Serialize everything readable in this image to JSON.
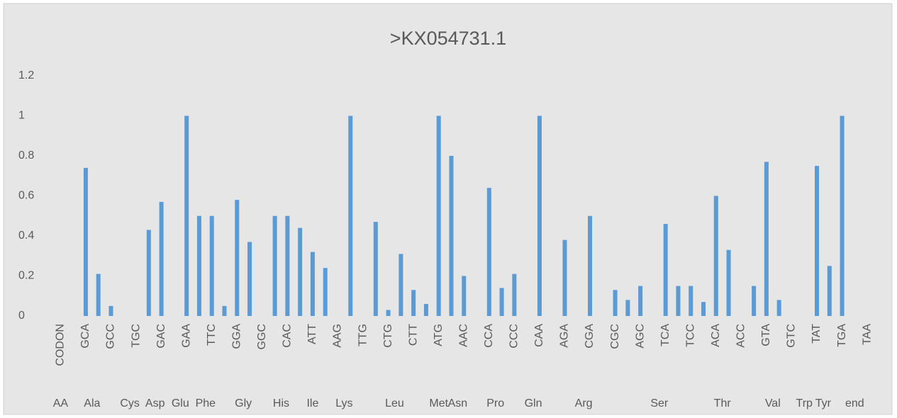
{
  "chart_data": {
    "type": "bar",
    "title": ">KX054731.1",
    "categories": [
      "CODON",
      null,
      "GCA",
      null,
      "GCC",
      null,
      "TGC",
      null,
      "GAC",
      null,
      "GAA",
      null,
      "TTC",
      null,
      "GGA",
      null,
      "GGC",
      null,
      "CAC",
      null,
      "ATT",
      null,
      "AAG",
      null,
      "TTG",
      null,
      "CTG",
      null,
      "CTT",
      null,
      "ATG",
      null,
      "AAC",
      null,
      "CCA",
      null,
      "CCC",
      null,
      "CAA",
      null,
      "AGA",
      null,
      "CGA",
      null,
      "CGC",
      null,
      "AGC",
      null,
      "TCA",
      null,
      "TCC",
      null,
      "ACA",
      null,
      "ACC",
      null,
      "GTA",
      null,
      "GTC",
      null,
      "TAT",
      null,
      "TGA",
      null,
      "TAA"
    ],
    "values": [
      null,
      0,
      0.74,
      0.21,
      0.05,
      0,
      0,
      0.43,
      0.57,
      0,
      1,
      0.5,
      0.5,
      0.05,
      0.58,
      0.37,
      0,
      0.5,
      0.5,
      0.44,
      0.32,
      0.24,
      0,
      1,
      0,
      0.47,
      0.03,
      0.31,
      0.13,
      0.06,
      1,
      0.8,
      0.2,
      0,
      0.64,
      0.14,
      0.21,
      0,
      1,
      0,
      0.38,
      0,
      0.5,
      0,
      0.13,
      0.08,
      0.15,
      0,
      0.46,
      0.15,
      0.15,
      0.07,
      0.6,
      0.33,
      0,
      0.15,
      0.77,
      0.08,
      0,
      0,
      0.75,
      0.25,
      1,
      0,
      0
    ],
    "groups": [
      {
        "name": "AA",
        "size": 1
      },
      {
        "name": "Ala",
        "size": 4
      },
      {
        "name": "Cys",
        "size": 2
      },
      {
        "name": "Asp",
        "size": 2
      },
      {
        "name": "Glu",
        "size": 2
      },
      {
        "name": "Phe",
        "size": 2
      },
      {
        "name": "Gly",
        "size": 4
      },
      {
        "name": "His",
        "size": 2
      },
      {
        "name": "Ile",
        "size": 3
      },
      {
        "name": "Lys",
        "size": 2
      },
      {
        "name": "Leu",
        "size": 6
      },
      {
        "name": "Met",
        "size": 1
      },
      {
        "name": "Asn",
        "size": 2
      },
      {
        "name": "Pro",
        "size": 4
      },
      {
        "name": "Gln",
        "size": 2
      },
      {
        "name": "Arg",
        "size": 6
      },
      {
        "name": "Ser",
        "size": 6
      },
      {
        "name": "Thr",
        "size": 4
      },
      {
        "name": "Val",
        "size": 4
      },
      {
        "name": "Trp",
        "size": 1
      },
      {
        "name": "Tyr",
        "size": 2
      },
      {
        "name": "end",
        "size": 3
      }
    ],
    "color": "#5b9bd5",
    "ylim": [
      0,
      1.2
    ],
    "yticks": [
      0,
      0.2,
      0.4,
      0.6,
      0.8,
      1,
      1.2
    ],
    "grid": false
  }
}
